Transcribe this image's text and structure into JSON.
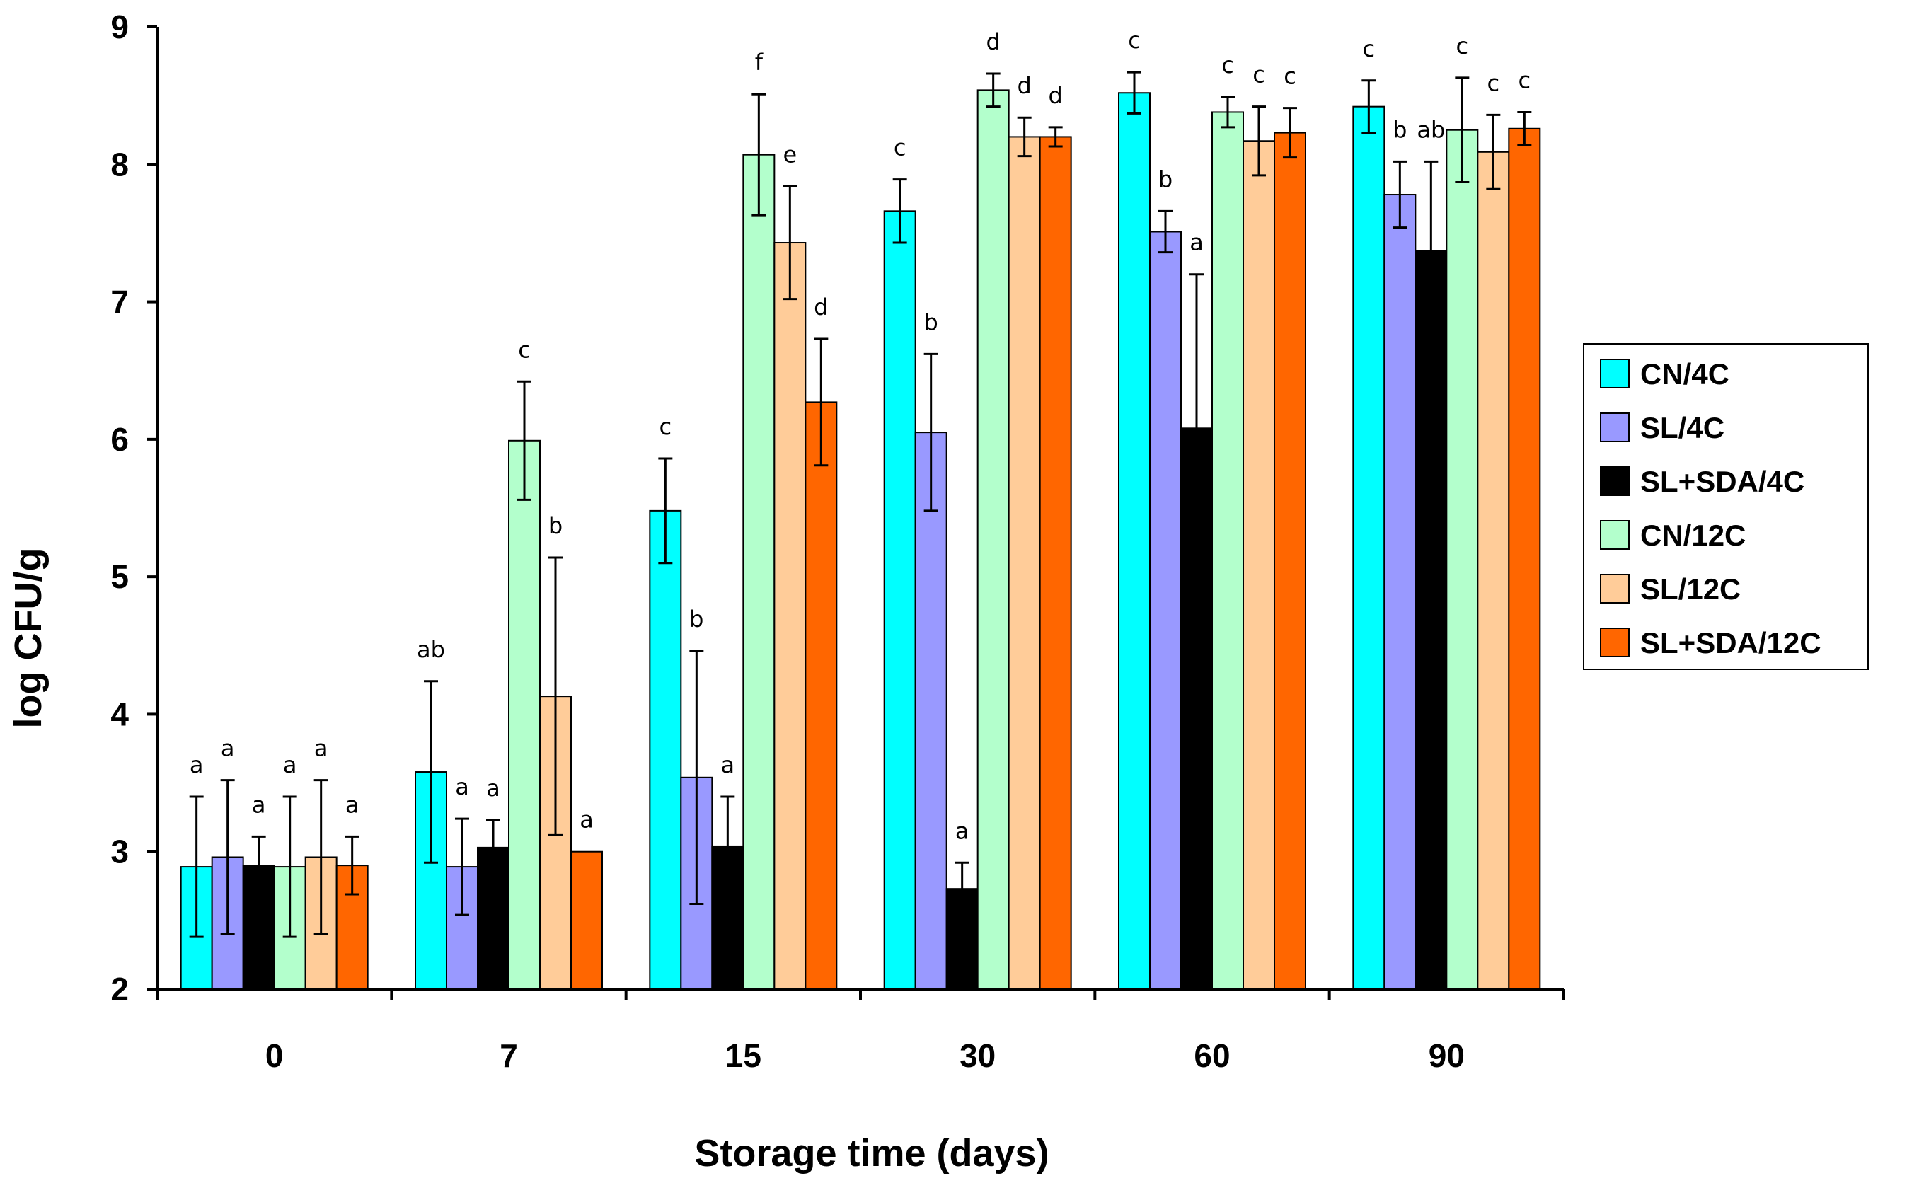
{
  "chart_data": {
    "type": "bar",
    "title": "",
    "xlabel": "Storage time (days)",
    "ylabel": "log CFU/g",
    "ylim": [
      2,
      9
    ],
    "yticks": [
      "2",
      "3",
      "4",
      "5",
      "6",
      "7",
      "8",
      "9"
    ],
    "categories": [
      "0",
      "7",
      "15",
      "30",
      "60",
      "90"
    ],
    "legend_position": "right",
    "series": [
      {
        "name": "CN/4C",
        "color": "#00FFFF",
        "values": [
          2.89,
          3.58,
          5.48,
          7.66,
          8.52,
          8.42
        ],
        "errors": [
          0.51,
          0.66,
          0.38,
          0.23,
          0.15,
          0.19
        ],
        "letters": [
          "a",
          "ab",
          "c",
          "c",
          "c",
          "c"
        ]
      },
      {
        "name": "SL/4C",
        "color": "#9999FF",
        "values": [
          2.96,
          2.89,
          3.54,
          6.05,
          7.51,
          7.78
        ],
        "errors": [
          0.56,
          0.35,
          0.92,
          0.57,
          0.15,
          0.24
        ],
        "letters": [
          "a",
          "a",
          "b",
          "b",
          "b",
          "b"
        ]
      },
      {
        "name": "SL+SDA/4C",
        "color": "#000000",
        "values": [
          2.9,
          3.03,
          3.04,
          2.73,
          6.08,
          7.37
        ],
        "errors": [
          0.21,
          0.2,
          0.36,
          0.19,
          1.12,
          0.65
        ],
        "letters": [
          "a",
          "a",
          "a",
          "a",
          "a",
          "ab"
        ]
      },
      {
        "name": "CN/12C",
        "color": "#B3FFCC",
        "values": [
          2.89,
          5.99,
          8.07,
          8.54,
          8.38,
          8.25
        ],
        "errors": [
          0.51,
          0.43,
          0.44,
          0.12,
          0.11,
          0.38
        ],
        "letters": [
          "a",
          "c",
          "f",
          "d",
          "c",
          "c"
        ]
      },
      {
        "name": "SL/12C",
        "color": "#FFCC99",
        "values": [
          2.96,
          4.13,
          7.43,
          8.2,
          8.17,
          8.09
        ],
        "errors": [
          0.56,
          1.01,
          0.41,
          0.14,
          0.25,
          0.27
        ],
        "letters": [
          "a",
          "b",
          "e",
          "d",
          "c",
          "c"
        ]
      },
      {
        "name": "SL+SDA/12C",
        "color": "#FF6600",
        "values": [
          2.9,
          3.0,
          6.27,
          8.2,
          8.23,
          8.26
        ],
        "errors": [
          0.21,
          0.0,
          0.46,
          0.07,
          0.18,
          0.12
        ],
        "letters": [
          "a",
          "a",
          "d",
          "d",
          "c",
          "c"
        ]
      }
    ]
  }
}
